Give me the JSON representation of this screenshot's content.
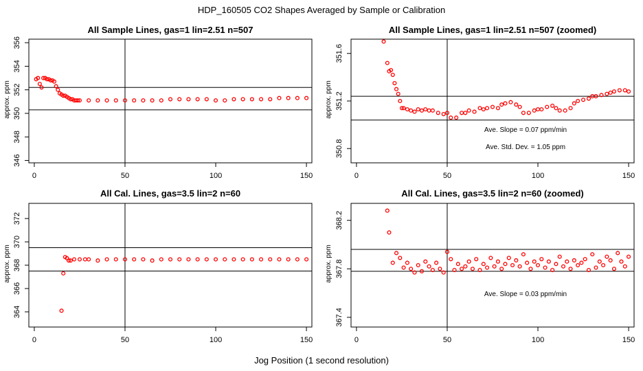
{
  "main_title": "HDP_160505  CO2 Shapes Averaged by Sample or Calibration",
  "x_caption": "Jog Position (1 second resolution)",
  "chart_data": [
    {
      "type": "scatter",
      "title": "All Sample Lines, gas=1 lin=2.51 n=507",
      "ylabel": "approx. ppm",
      "xlim": [
        -3,
        153
      ],
      "ylim": [
        345.8,
        356.3
      ],
      "xticks": [
        0,
        50,
        100,
        150
      ],
      "yticks": [
        346,
        348,
        350,
        352,
        354,
        356
      ],
      "vline": 50,
      "hlines": [
        350.3,
        352.2
      ],
      "notes": [],
      "series": [
        {
          "color": "#ff0000",
          "x": [
            1,
            2,
            3,
            4,
            5,
            6,
            7,
            8,
            9,
            10,
            11,
            12,
            13,
            14,
            15,
            16,
            17,
            18,
            19,
            20,
            21,
            22,
            23,
            24,
            25,
            30,
            35,
            40,
            45,
            50,
            55,
            60,
            65,
            70,
            75,
            80,
            85,
            90,
            95,
            100,
            105,
            110,
            115,
            120,
            125,
            130,
            135,
            140,
            145,
            150
          ],
          "y": [
            352.9,
            353.0,
            352.5,
            352.2,
            353.0,
            353.0,
            352.9,
            352.9,
            352.8,
            352.8,
            352.7,
            352.3,
            352.0,
            351.7,
            351.6,
            351.5,
            351.5,
            351.4,
            351.3,
            351.2,
            351.2,
            351.1,
            351.1,
            351.1,
            351.1,
            351.1,
            351.1,
            351.1,
            351.1,
            351.1,
            351.1,
            351.1,
            351.1,
            351.1,
            351.2,
            351.2,
            351.2,
            351.2,
            351.2,
            351.1,
            351.1,
            351.2,
            351.2,
            351.2,
            351.2,
            351.2,
            351.3,
            351.3,
            351.3,
            351.3
          ]
        }
      ]
    },
    {
      "type": "scatter",
      "title": "All Sample Lines, gas=1 lin=2.51 n=507 (zoomed)",
      "ylabel": "approx. ppm",
      "xlim": [
        -3,
        153
      ],
      "ylim": [
        350.68,
        351.72
      ],
      "xticks": [
        0,
        50,
        100,
        150
      ],
      "yticks": [
        350.8,
        351.2,
        351.6
      ],
      "vline": 50,
      "hlines": [
        351.04,
        351.24
      ],
      "notes": [
        "Ave. Slope =  0.07  ppm/min",
        "Ave. Std. Dev. =  1.05  ppm"
      ],
      "series": [
        {
          "color": "#ff0000",
          "x": [
            15,
            17,
            18,
            19,
            20,
            21,
            22,
            23,
            24,
            25,
            26,
            28,
            30,
            32,
            34,
            36,
            38,
            40,
            42,
            45,
            48,
            50,
            52,
            55,
            58,
            60,
            62,
            65,
            68,
            70,
            72,
            75,
            78,
            80,
            82,
            85,
            88,
            90,
            92,
            95,
            98,
            100,
            102,
            105,
            108,
            110,
            112,
            115,
            118,
            120,
            122,
            125,
            128,
            130,
            132,
            135,
            138,
            140,
            142,
            145,
            148,
            150
          ],
          "y": [
            351.7,
            351.52,
            351.45,
            351.46,
            351.42,
            351.35,
            351.3,
            351.26,
            351.2,
            351.14,
            351.14,
            351.13,
            351.12,
            351.11,
            351.13,
            351.12,
            351.13,
            351.12,
            351.12,
            351.1,
            351.09,
            351.1,
            351.06,
            351.06,
            351.1,
            351.1,
            351.12,
            351.11,
            351.14,
            351.13,
            351.14,
            351.15,
            351.14,
            351.17,
            351.18,
            351.19,
            351.17,
            351.15,
            351.1,
            351.1,
            351.12,
            351.13,
            351.13,
            351.15,
            351.16,
            351.14,
            351.12,
            351.12,
            351.14,
            351.18,
            351.2,
            351.21,
            351.22,
            351.24,
            351.24,
            351.25,
            351.26,
            351.27,
            351.28,
            351.29,
            351.29,
            351.28
          ]
        }
      ]
    },
    {
      "type": "scatter",
      "title": "All Cal. Lines, gas=3.5 lin=2 n=60",
      "ylabel": "approx. ppm",
      "xlim": [
        -3,
        153
      ],
      "ylim": [
        362.7,
        373.3
      ],
      "xticks": [
        0,
        50,
        100,
        150
      ],
      "yticks": [
        364,
        366,
        368,
        370,
        372
      ],
      "vline": 50,
      "hlines": [
        367.5,
        369.5
      ],
      "notes": [],
      "series": [
        {
          "color": "#ff0000",
          "x": [
            15,
            16,
            17,
            18,
            19,
            20,
            22,
            25,
            28,
            30,
            35,
            40,
            45,
            50,
            55,
            60,
            65,
            70,
            75,
            80,
            85,
            90,
            95,
            100,
            105,
            110,
            115,
            120,
            125,
            130,
            135,
            140,
            145,
            150
          ],
          "y": [
            364.1,
            367.3,
            368.7,
            368.6,
            368.4,
            368.4,
            368.5,
            368.5,
            368.5,
            368.5,
            368.4,
            368.5,
            368.5,
            368.5,
            368.5,
            368.5,
            368.4,
            368.5,
            368.5,
            368.5,
            368.5,
            368.5,
            368.5,
            368.5,
            368.5,
            368.5,
            368.5,
            368.5,
            368.5,
            368.5,
            368.5,
            368.5,
            368.5,
            368.5
          ]
        }
      ]
    },
    {
      "type": "scatter",
      "title": "All Cal. Lines, gas=3.5 lin=2 n=60 (zoomed)",
      "ylabel": "approx. ppm",
      "xlim": [
        -3,
        153
      ],
      "ylim": [
        367.32,
        368.34
      ],
      "xticks": [
        0,
        50,
        100,
        150
      ],
      "yticks": [
        367.4,
        367.8,
        368.2
      ],
      "vline": 50,
      "hlines": [
        367.78,
        367.96
      ],
      "notes": [
        "Ave. Slope =  0.03  ppm/min"
      ],
      "series": [
        {
          "color": "#ff0000",
          "x": [
            17,
            18,
            20,
            22,
            24,
            26,
            28,
            30,
            32,
            34,
            36,
            38,
            40,
            42,
            44,
            46,
            48,
            50,
            52,
            54,
            56,
            58,
            60,
            62,
            64,
            66,
            68,
            70,
            72,
            74,
            76,
            78,
            80,
            82,
            84,
            86,
            88,
            90,
            92,
            94,
            96,
            98,
            100,
            102,
            104,
            106,
            108,
            110,
            112,
            114,
            116,
            118,
            120,
            122,
            124,
            126,
            128,
            130,
            132,
            134,
            136,
            138,
            140,
            142,
            144,
            146,
            148,
            150
          ],
          "y": [
            368.28,
            368.1,
            367.85,
            367.93,
            367.89,
            367.81,
            367.85,
            367.8,
            367.77,
            367.83,
            367.78,
            367.86,
            367.82,
            367.79,
            367.85,
            367.8,
            367.77,
            367.94,
            367.88,
            367.79,
            367.84,
            367.8,
            367.82,
            367.86,
            367.8,
            367.88,
            367.79,
            367.84,
            367.81,
            367.89,
            367.82,
            367.86,
            367.8,
            367.84,
            367.89,
            367.83,
            367.87,
            367.82,
            367.92,
            367.85,
            367.8,
            367.86,
            367.83,
            367.88,
            367.81,
            367.86,
            367.79,
            367.84,
            367.9,
            367.82,
            367.86,
            367.8,
            367.87,
            367.83,
            367.85,
            367.88,
            367.79,
            367.92,
            367.81,
            367.86,
            367.83,
            367.9,
            367.87,
            367.8,
            367.93,
            367.86,
            367.82,
            367.9
          ]
        }
      ]
    }
  ]
}
